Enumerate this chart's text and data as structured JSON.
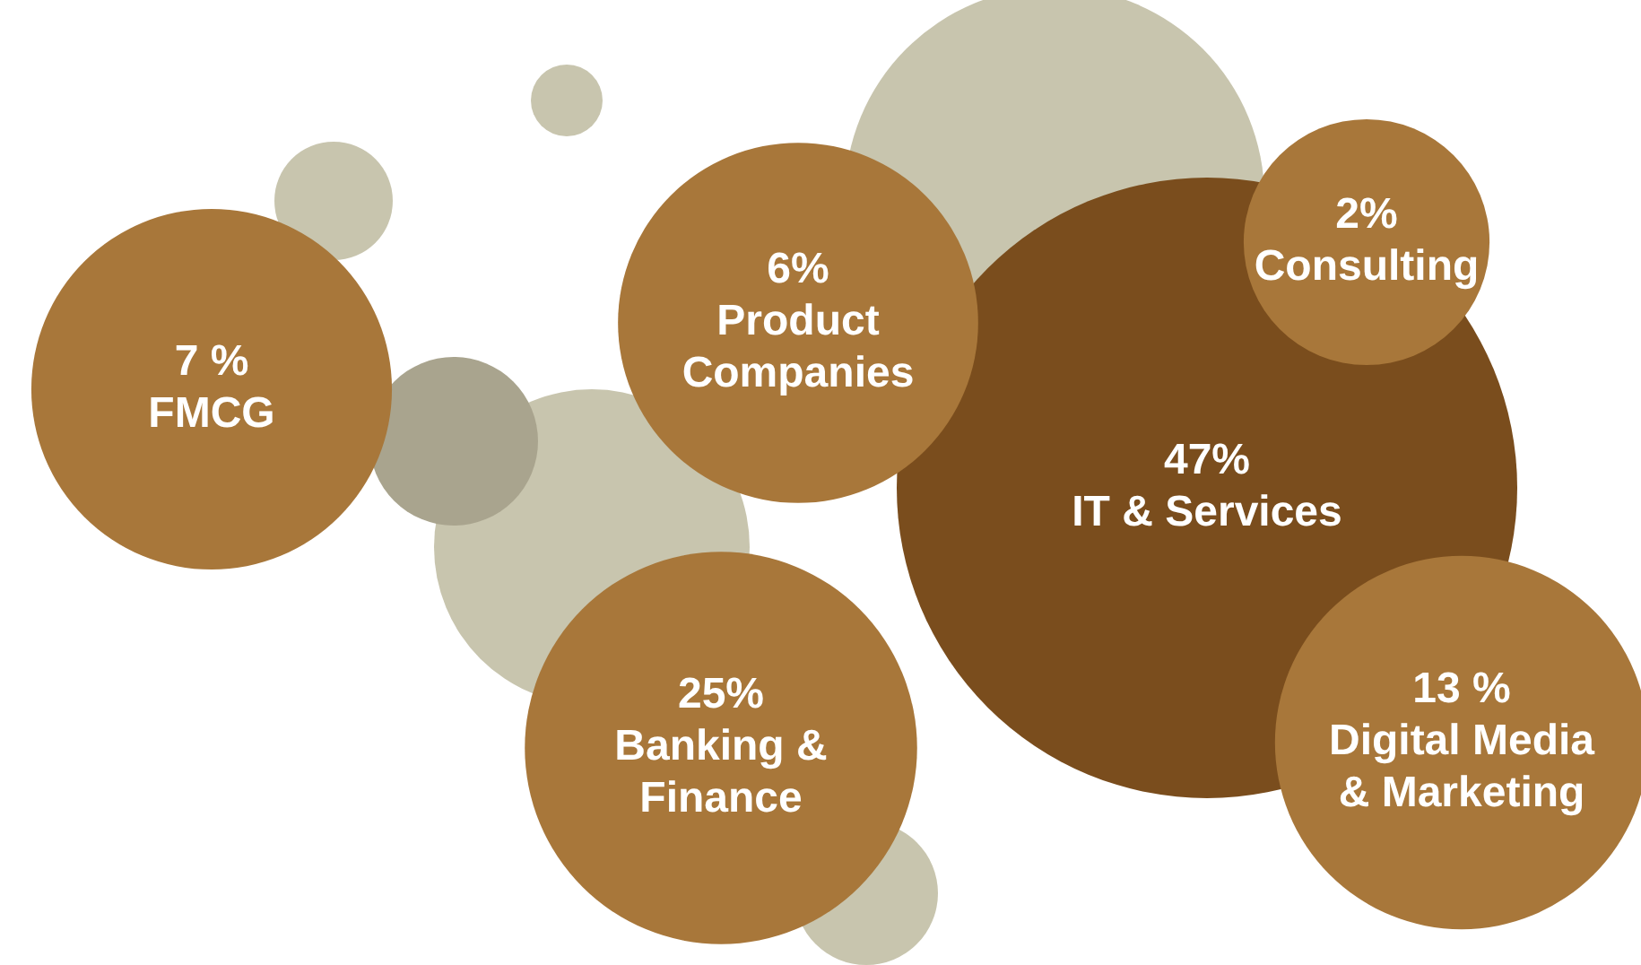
{
  "chart_data": {
    "type": "other",
    "categories": [
      "FMCG",
      "Product Companies",
      "IT & Services",
      "Consulting",
      "Banking & Finance",
      "Digital Media & Marketing"
    ],
    "values": [
      7,
      6,
      47,
      2,
      25,
      13
    ],
    "value_labels": [
      "7 %",
      "6%",
      "47%",
      "2%",
      "25%",
      "13 %"
    ],
    "colors": [
      "#a8773a",
      "#a8773a",
      "#7a4d1d",
      "#a8773a",
      "#a8773a",
      "#a8773a"
    ]
  }
}
